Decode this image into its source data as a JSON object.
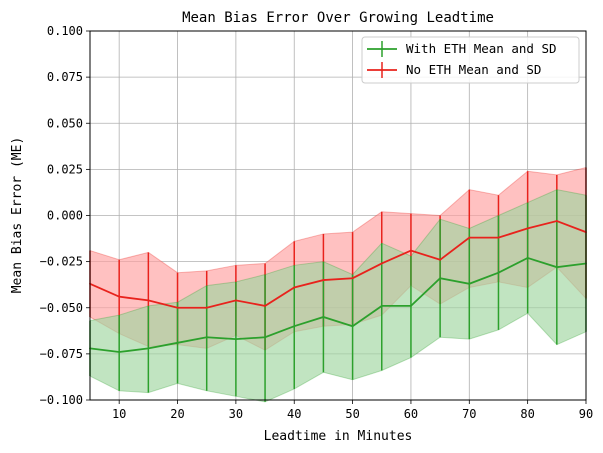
{
  "chart_data": {
    "type": "line",
    "title": "Mean Bias Error Over Growing Leadtime",
    "xlabel": "Leadtime in Minutes",
    "ylabel": "Mean Bias Error (ME)",
    "xlim": [
      5,
      90
    ],
    "ylim": [
      -0.1,
      0.1
    ],
    "xticks": [
      10,
      20,
      30,
      40,
      50,
      60,
      70,
      80,
      90
    ],
    "yticks": [
      -0.1,
      -0.075,
      -0.05,
      -0.025,
      0.0,
      0.025,
      0.05,
      0.075,
      0.1
    ],
    "ytick_labels": [
      "−0.100",
      "−0.075",
      "−0.050",
      "−0.025",
      "0.000",
      "0.025",
      "0.050",
      "0.075",
      "0.100"
    ],
    "grid": true,
    "legend_position": "top-right",
    "x": [
      5,
      10,
      15,
      20,
      25,
      30,
      35,
      40,
      45,
      50,
      55,
      60,
      65,
      70,
      75,
      80,
      85,
      90
    ],
    "series": [
      {
        "name": "With ETH Mean and SD",
        "color": "#2ca02c",
        "fill": "#9fd59f",
        "values": [
          -0.072,
          -0.074,
          -0.072,
          -0.069,
          -0.066,
          -0.067,
          -0.066,
          -0.06,
          -0.055,
          -0.06,
          -0.049,
          -0.049,
          -0.034,
          -0.037,
          -0.031,
          -0.023,
          -0.028,
          -0.026
        ],
        "lower": [
          -0.087,
          -0.095,
          -0.096,
          -0.091,
          -0.095,
          -0.098,
          -0.101,
          -0.094,
          -0.085,
          -0.089,
          -0.084,
          -0.077,
          -0.066,
          -0.067,
          -0.062,
          -0.053,
          -0.07,
          -0.063
        ],
        "upper": [
          -0.057,
          -0.054,
          -0.049,
          -0.047,
          -0.038,
          -0.036,
          -0.032,
          -0.027,
          -0.025,
          -0.032,
          -0.015,
          -0.022,
          -0.002,
          -0.007,
          0.0,
          0.007,
          0.014,
          0.011
        ]
      },
      {
        "name": "No ETH Mean and SD",
        "color": "#e8221c",
        "fill": "#ff9f9f",
        "values": [
          -0.037,
          -0.044,
          -0.046,
          -0.05,
          -0.05,
          -0.046,
          -0.049,
          -0.039,
          -0.035,
          -0.034,
          -0.026,
          -0.019,
          -0.024,
          -0.012,
          -0.012,
          -0.007,
          -0.003,
          -0.009
        ],
        "lower": [
          -0.055,
          -0.064,
          -0.071,
          -0.07,
          -0.072,
          -0.065,
          -0.073,
          -0.063,
          -0.06,
          -0.059,
          -0.054,
          -0.038,
          -0.048,
          -0.039,
          -0.036,
          -0.039,
          -0.028,
          -0.045
        ],
        "upper": [
          -0.019,
          -0.024,
          -0.02,
          -0.031,
          -0.03,
          -0.027,
          -0.026,
          -0.014,
          -0.01,
          -0.009,
          0.002,
          0.001,
          0.0,
          0.014,
          0.011,
          0.024,
          0.022,
          0.026
        ]
      }
    ]
  }
}
